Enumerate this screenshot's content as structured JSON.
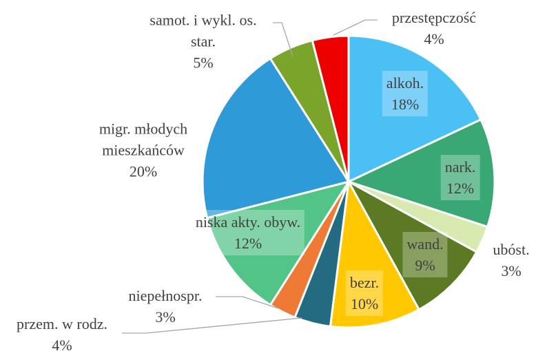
{
  "chart_data": {
    "type": "pie",
    "categories": [
      "alkoh.",
      "nark.",
      "ubóst.",
      "wand.",
      "bezr.",
      "przem. w rodz.",
      "niepełnospr.",
      "niska akty. obyw.",
      "migr. młodych\nmieszkańców",
      "samot. i wykl. os.\nstar.",
      "przestępczość"
    ],
    "values": [
      18,
      12,
      3,
      9,
      10,
      4,
      3,
      12,
      20,
      5,
      4
    ],
    "value_labels": [
      "18%",
      "12%",
      "3%",
      "9%",
      "10%",
      "4%",
      "3%",
      "12%",
      "20%",
      "5%",
      "4%"
    ],
    "colors": [
      "#4bc0f5",
      "#3aa874",
      "#d9eab0",
      "#5b7a23",
      "#ffc800",
      "#226b80",
      "#ee7a36",
      "#52c487",
      "#2e9ad8",
      "#7aa52a",
      "#ee0000"
    ]
  }
}
